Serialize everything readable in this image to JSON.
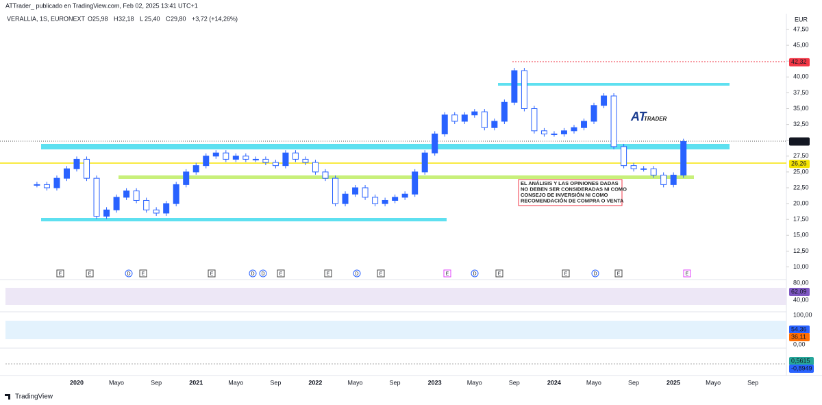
{
  "header": {
    "byline": "ATTrader_ publicado en TradingView.com, Feb 02, 2025 13:41 UTC+1",
    "symbol": "VERALLIA, 1S, EURONEXT",
    "ohlc": [
      {
        "key": "O",
        "value": "25,98"
      },
      {
        "key": "H",
        "value": "32,18"
      },
      {
        "key": "L",
        "value": "25,40"
      },
      {
        "key": "C",
        "value": "29,80"
      }
    ],
    "change": "+3,72 (+14,26%)",
    "currency": "EUR"
  },
  "chart_data": {
    "type": "candlestick",
    "series": [
      {
        "name": "VERALLIA",
        "color": "#2962ff",
        "values": [
          23,
          22.5,
          24,
          25.5,
          27,
          24,
          18,
          19,
          21,
          22,
          20.5,
          19,
          18.5,
          20,
          23,
          25,
          26,
          27.5,
          28,
          27,
          27.5,
          27,
          27,
          26.5,
          26,
          28,
          27,
          26.5,
          25,
          24,
          20,
          21.5,
          22.5,
          21,
          20,
          20.5,
          21,
          21.5,
          25,
          28,
          31,
          34,
          33,
          34,
          34.5,
          32,
          33,
          36,
          41,
          35,
          31.5,
          31,
          31,
          31.5,
          32,
          33,
          35.5,
          37,
          29,
          26,
          25.5,
          25.5,
          24.5,
          23,
          24.5,
          29.8
        ]
      }
    ],
    "ylim": [
      10,
      47.5
    ],
    "yticks": [
      {
        "value": 47.5,
        "label": "47,50"
      },
      {
        "value": 45,
        "label": "45,00"
      },
      {
        "value": 42.5,
        "label": "42,50"
      },
      {
        "value": 40,
        "label": "40,00"
      },
      {
        "value": 37.5,
        "label": "37,50"
      },
      {
        "value": 35,
        "label": "35,00"
      },
      {
        "value": 32.5,
        "label": "32,50"
      },
      {
        "value": 30,
        "label": "30,00"
      },
      {
        "value": 27.5,
        "label": "27,50"
      },
      {
        "value": 25,
        "label": "25,00"
      },
      {
        "value": 22.5,
        "label": "22,50"
      },
      {
        "value": 20,
        "label": "20,00"
      },
      {
        "value": 17.5,
        "label": "17,50"
      },
      {
        "value": 15,
        "label": "15,00"
      },
      {
        "value": 12.5,
        "label": "12,50"
      },
      {
        "value": 10,
        "label": "10,00"
      }
    ],
    "price_labels": [
      {
        "value": 42.32,
        "label": "42,32",
        "color": "#f23645"
      },
      {
        "value": 29.8,
        "label": "29,80",
        "color": "#131722"
      },
      {
        "value": 26.26,
        "label": "26,26",
        "color": "#f5e400"
      }
    ],
    "time_labels": [
      "2020",
      "Mayo",
      "Sep",
      "2021",
      "Mayo",
      "Sep",
      "2022",
      "Mayo",
      "Sep",
      "2023",
      "Mayo",
      "Sep",
      "2024",
      "Mayo",
      "Sep",
      "2025",
      "Mayo",
      "Sep"
    ],
    "events": [
      "E",
      "E",
      "D",
      "E",
      "E",
      "D",
      "D",
      "E",
      "E",
      "D",
      "E",
      "E",
      "D",
      "E",
      "E",
      "D",
      "E",
      "E"
    ],
    "rsi": {
      "ticks": [
        "80,00",
        "40,00"
      ],
      "value": "62,09"
    },
    "stoch": {
      "ticks": [
        "100,00",
        "0,00"
      ],
      "k": "54,36",
      "d": "36,11"
    },
    "macd": {
      "macd": "0,5615",
      "signal": "-0,8949"
    },
    "annotation": [
      "EL ANÁLISIS Y LAS OPINIONES DADAS",
      "NO DEBEN SER CONSIDERADAS NI COMO",
      "CONSEJO DE INVERSIÓN NI COMO",
      "RECOMENDACIÓN DE COMPRA O VENTA"
    ],
    "logo": [
      "AT",
      "TRADER"
    ],
    "footer": "TradingView"
  }
}
